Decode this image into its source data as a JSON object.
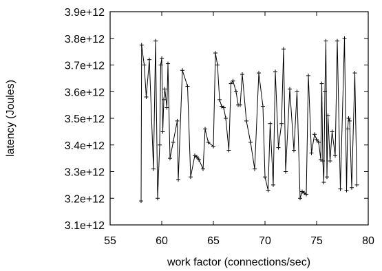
{
  "chart_data": {
    "type": "line",
    "title": "",
    "xlabel": "work factor (connections/sec)",
    "ylabel": "latency (Joules)",
    "xlim": [
      55,
      80
    ],
    "ylim": [
      3100000000000.0,
      3900000000000.0
    ],
    "x_ticks": [
      55,
      60,
      65,
      70,
      75,
      80
    ],
    "x_tick_labels": [
      "55",
      "60",
      "65",
      "70",
      "75",
      "80"
    ],
    "y_ticks": [
      3100000000000.0,
      3200000000000.0,
      3300000000000.0,
      3400000000000.0,
      3500000000000.0,
      3600000000000.0,
      3700000000000.0,
      3800000000000.0,
      3900000000000.0
    ],
    "y_tick_labels": [
      "3.1e+12",
      "3.2e+12",
      "3.3e+12",
      "3.4e+12",
      "3.5e+12",
      "3.6e+12",
      "3.7e+12",
      "3.8e+12",
      "3.9e+12"
    ],
    "grid": false,
    "legend": "none",
    "marker": "+",
    "line_color": "#000000",
    "series": [
      {
        "x": [
          58.0,
          58.05,
          58.3,
          58.5,
          58.8,
          59.2,
          59.4,
          59.6,
          59.8,
          59.9,
          60.0,
          60.1,
          60.2,
          60.3,
          60.5,
          60.6,
          60.8,
          61.1,
          61.5,
          61.6,
          62.0,
          62.5,
          62.8,
          63.2,
          63.4,
          63.6,
          64.0,
          64.2,
          64.5,
          65.0,
          65.2,
          65.4,
          65.6,
          65.8,
          66.0,
          66.2,
          66.5,
          66.7,
          66.9,
          67.2,
          67.4,
          67.6,
          67.8,
          68.2,
          68.6,
          69.0,
          69.4,
          69.8,
          70.0,
          70.3,
          70.5,
          70.8,
          71.0,
          71.3,
          71.6,
          71.8,
          72.0,
          72.4,
          72.8,
          73.1,
          73.4,
          73.6,
          73.8,
          74.0,
          74.2,
          74.5,
          74.8,
          75.0,
          75.2,
          75.4,
          75.5,
          75.6,
          75.7,
          75.8,
          75.9,
          76.0,
          76.1,
          76.3,
          76.5,
          76.8,
          77.0,
          77.3,
          77.7,
          77.9,
          78.0,
          78.1,
          78.2,
          78.4,
          78.7,
          78.9
        ],
        "y": [
          3190000000000.0,
          3775000000000.0,
          3700000000000.0,
          3580000000000.0,
          3720000000000.0,
          3310000000000.0,
          3790000000000.0,
          3200000000000.0,
          3400000000000.0,
          3700000000000.0,
          3725000000000.0,
          3450000000000.0,
          3570000000000.0,
          3610000000000.0,
          3540000000000.0,
          3705000000000.0,
          3350000000000.0,
          3410000000000.0,
          3490000000000.0,
          3270000000000.0,
          3680000000000.0,
          3620000000000.0,
          3280000000000.0,
          3360000000000.0,
          3355000000000.0,
          3345000000000.0,
          3310000000000.0,
          3460000000000.0,
          3410000000000.0,
          3395000000000.0,
          3745000000000.0,
          3700000000000.0,
          3570000000000.0,
          3545000000000.0,
          3540000000000.0,
          3500000000000.0,
          3380000000000.0,
          3630000000000.0,
          3640000000000.0,
          3600000000000.0,
          3550000000000.0,
          3550000000000.0,
          3665000000000.0,
          3490000000000.0,
          3410000000000.0,
          3310000000000.0,
          3670000000000.0,
          3545000000000.0,
          3280000000000.0,
          3230000000000.0,
          3480000000000.0,
          3250000000000.0,
          3675000000000.0,
          3390000000000.0,
          3480000000000.0,
          3760000000000.0,
          3300000000000.0,
          3610000000000.0,
          3380000000000.0,
          3600000000000.0,
          3200000000000.0,
          3225000000000.0,
          3220000000000.0,
          3215000000000.0,
          3660000000000.0,
          3370000000000.0,
          3440000000000.0,
          3420000000000.0,
          3410000000000.0,
          3345000000000.0,
          3630000000000.0,
          3340000000000.0,
          3260000000000.0,
          3600000000000.0,
          3790000000000.0,
          3280000000000.0,
          3510000000000.0,
          3340000000000.0,
          3450000000000.0,
          3360000000000.0,
          3790000000000.0,
          3235000000000.0,
          3800000000000.0,
          3230000000000.0,
          3460000000000.0,
          3500000000000.0,
          3490000000000.0,
          3240000000000.0,
          3670000000000.0,
          3250000000000.0
        ]
      }
    ]
  }
}
